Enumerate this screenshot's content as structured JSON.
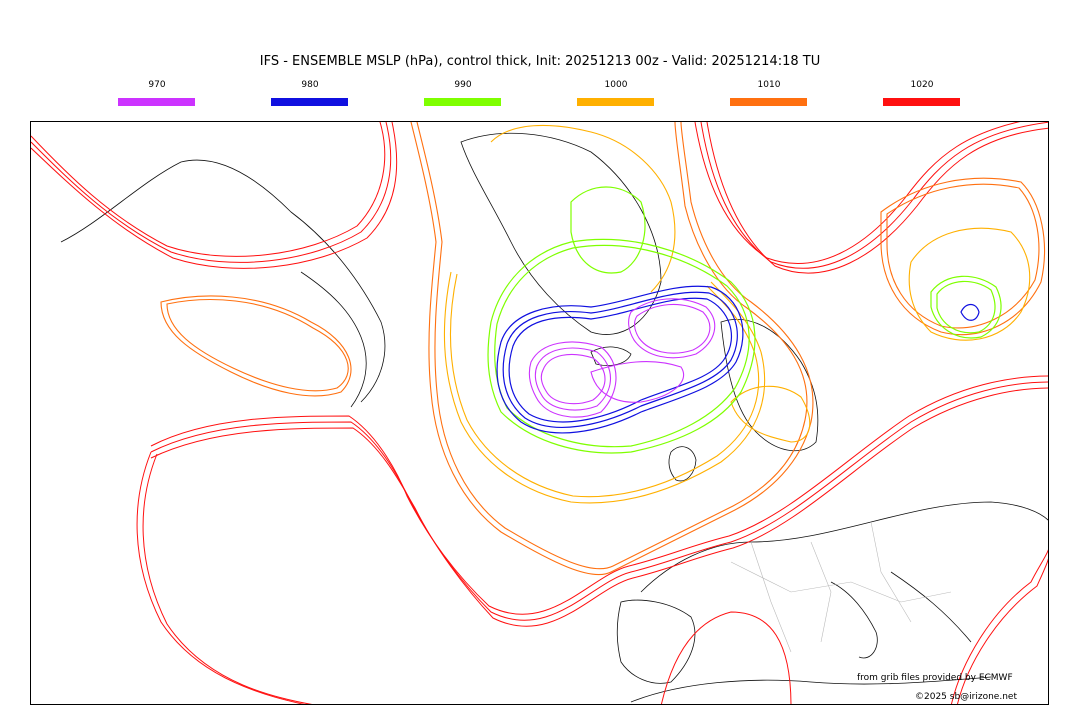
{
  "title": "IFS - ENSEMBLE MSLP (hPa), control thick, Init: 20251213 00z - Valid: 20251214:18 TU",
  "legend": [
    {
      "label": "970",
      "color": "#cc33ff"
    },
    {
      "label": "980",
      "color": "#1010e0"
    },
    {
      "label": "990",
      "color": "#7fff00"
    },
    {
      "label": "1000",
      "color": "#ffb000"
    },
    {
      "label": "1010",
      "color": "#ff7010"
    },
    {
      "label": "1020",
      "color": "#ff1010"
    }
  ],
  "credits": {
    "source": "from grib files provided by ECMWF",
    "copyright": "©2025 sb@irizone.net"
  }
}
